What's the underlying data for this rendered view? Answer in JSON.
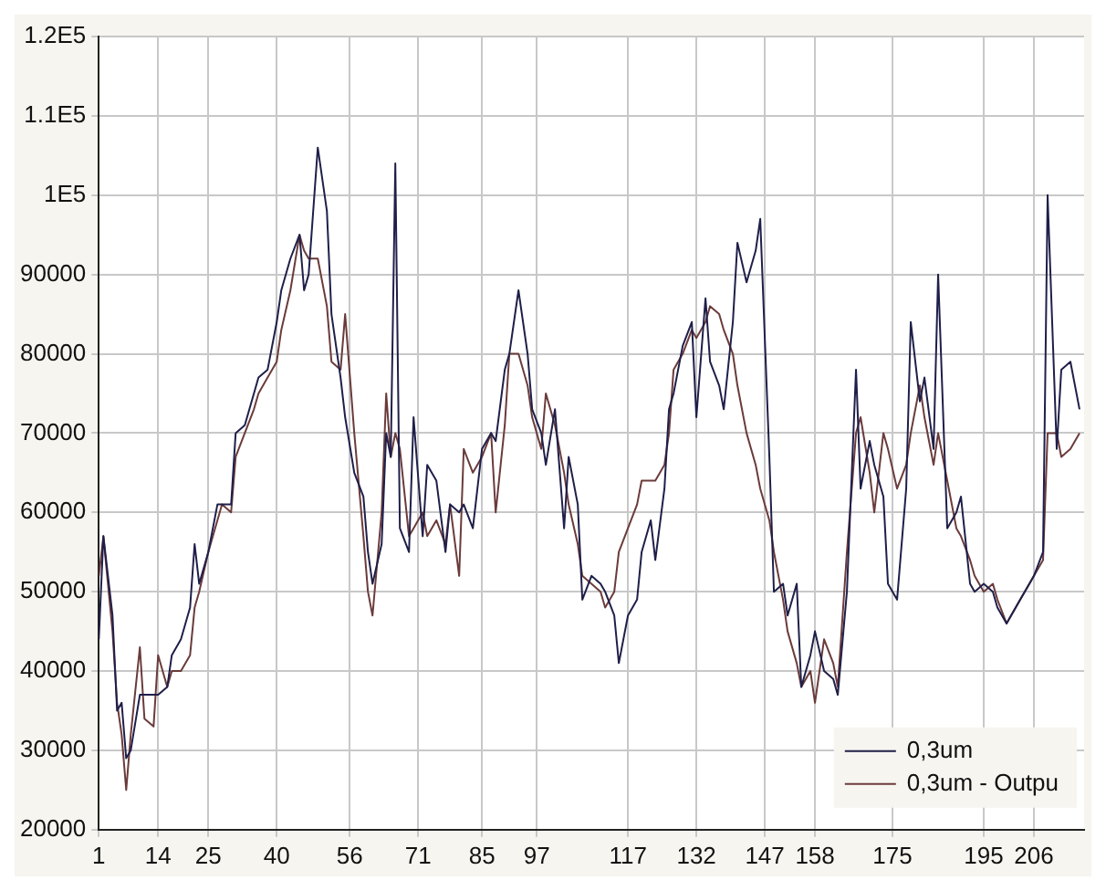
{
  "chart_data": {
    "type": "line",
    "x": [
      1,
      2,
      4,
      5,
      6,
      7,
      8,
      10,
      11,
      13,
      14,
      16,
      17,
      19,
      21,
      22,
      23,
      25,
      27,
      28,
      30,
      31,
      33,
      35,
      36,
      38,
      40,
      41,
      43,
      45,
      46,
      47,
      49,
      51,
      52,
      54,
      55,
      57,
      59,
      60,
      61,
      63,
      64,
      65,
      66,
      67,
      69,
      70,
      72,
      73,
      75,
      77,
      78,
      80,
      81,
      83,
      85,
      87,
      88,
      90,
      91,
      93,
      95,
      96,
      98,
      99,
      101,
      103,
      104,
      106,
      107,
      109,
      111,
      112,
      114,
      115,
      117,
      119,
      120,
      122,
      123,
      125,
      126,
      127,
      129,
      131,
      132,
      134,
      135,
      137,
      138,
      140,
      141,
      143,
      145,
      146,
      148,
      149,
      151,
      152,
      154,
      155,
      157,
      158,
      160,
      162,
      163,
      165,
      167,
      168,
      170,
      171,
      173,
      174,
      176,
      178,
      179,
      181,
      182,
      184,
      185,
      187,
      189,
      190,
      192,
      193,
      195,
      197,
      198,
      200,
      201,
      203,
      205,
      206,
      208,
      209,
      211,
      212,
      214,
      216
    ],
    "series": [
      {
        "name": "0,3um",
        "color": "#1f1f4a",
        "values": [
          44000,
          57000,
          47000,
          35000,
          36000,
          29000,
          30000,
          37000,
          37000,
          37000,
          37000,
          38000,
          42000,
          44000,
          48000,
          56000,
          51000,
          55000,
          61000,
          61000,
          61000,
          70000,
          71000,
          75000,
          77000,
          78000,
          84000,
          88000,
          92000,
          95000,
          88000,
          90000,
          106000,
          98000,
          85000,
          77000,
          72000,
          65000,
          62000,
          55000,
          51000,
          56000,
          70000,
          67000,
          104000,
          58000,
          55000,
          72000,
          57000,
          66000,
          64000,
          55000,
          61000,
          60000,
          61000,
          58000,
          68000,
          70000,
          69000,
          78000,
          80000,
          88000,
          80000,
          73000,
          70000,
          66000,
          73000,
          58000,
          67000,
          61000,
          49000,
          52000,
          51000,
          50000,
          47000,
          41000,
          47000,
          49000,
          55000,
          59000,
          54000,
          63000,
          73000,
          75000,
          81000,
          84000,
          72000,
          87000,
          79000,
          76000,
          73000,
          84000,
          94000,
          89000,
          93000,
          97000,
          67000,
          50000,
          51000,
          47000,
          51000,
          38000,
          42000,
          45000,
          40000,
          39000,
          37000,
          50000,
          78000,
          63000,
          69000,
          66000,
          62000,
          51000,
          49000,
          63000,
          84000,
          74000,
          77000,
          68000,
          90000,
          58000,
          60000,
          62000,
          51000,
          50000,
          51000,
          50000,
          48000,
          46000,
          47000,
          49000,
          51000,
          52000,
          55000,
          100000,
          68000,
          78000,
          79000,
          73000
        ]
      },
      {
        "name": "0,3um - Outpu",
        "color": "#6b3b3b",
        "values": [
          52000,
          57000,
          45000,
          36000,
          32000,
          25000,
          32000,
          43000,
          34000,
          33000,
          42000,
          38000,
          40000,
          40000,
          42000,
          48000,
          50000,
          55000,
          59000,
          61000,
          60000,
          67000,
          70000,
          73000,
          75000,
          77000,
          79000,
          83000,
          88000,
          95000,
          93000,
          92000,
          92000,
          86000,
          79000,
          78000,
          85000,
          70000,
          57000,
          50000,
          47000,
          60000,
          75000,
          67000,
          70000,
          68000,
          57000,
          58000,
          60000,
          57000,
          59000,
          56000,
          61000,
          52000,
          68000,
          65000,
          67000,
          70000,
          60000,
          71000,
          80000,
          80000,
          76000,
          72000,
          68000,
          75000,
          71000,
          65000,
          61000,
          56000,
          52000,
          51000,
          50000,
          48000,
          50000,
          55000,
          58000,
          61000,
          64000,
          64000,
          64000,
          66000,
          70000,
          78000,
          80000,
          83000,
          82000,
          84000,
          86000,
          85000,
          83000,
          80000,
          76000,
          70000,
          66000,
          63000,
          59000,
          55000,
          49000,
          45000,
          41000,
          38000,
          40000,
          36000,
          44000,
          41000,
          38000,
          55000,
          70000,
          72000,
          65000,
          60000,
          70000,
          68000,
          63000,
          66000,
          70000,
          76000,
          72000,
          66000,
          70000,
          64000,
          58000,
          57000,
          54000,
          52000,
          50000,
          51000,
          49000,
          46000,
          47000,
          49000,
          51000,
          52000,
          54000,
          70000,
          70000,
          67000,
          68000,
          70000
        ]
      }
    ],
    "xlim": [
      1,
      217
    ],
    "xticks": [
      1,
      14,
      25,
      40,
      56,
      71,
      85,
      97,
      117,
      132,
      147,
      158,
      175,
      195,
      206
    ],
    "ylim": [
      20000,
      120000
    ],
    "yticks": [
      20000,
      30000,
      40000,
      50000,
      60000,
      70000,
      80000,
      90000,
      {
        "value": 100000,
        "label": "1E5"
      },
      {
        "value": 110000,
        "label": "1.1E5"
      },
      {
        "value": 120000,
        "label": "1.2E5"
      }
    ],
    "grid": true,
    "legend": "bottom right"
  }
}
